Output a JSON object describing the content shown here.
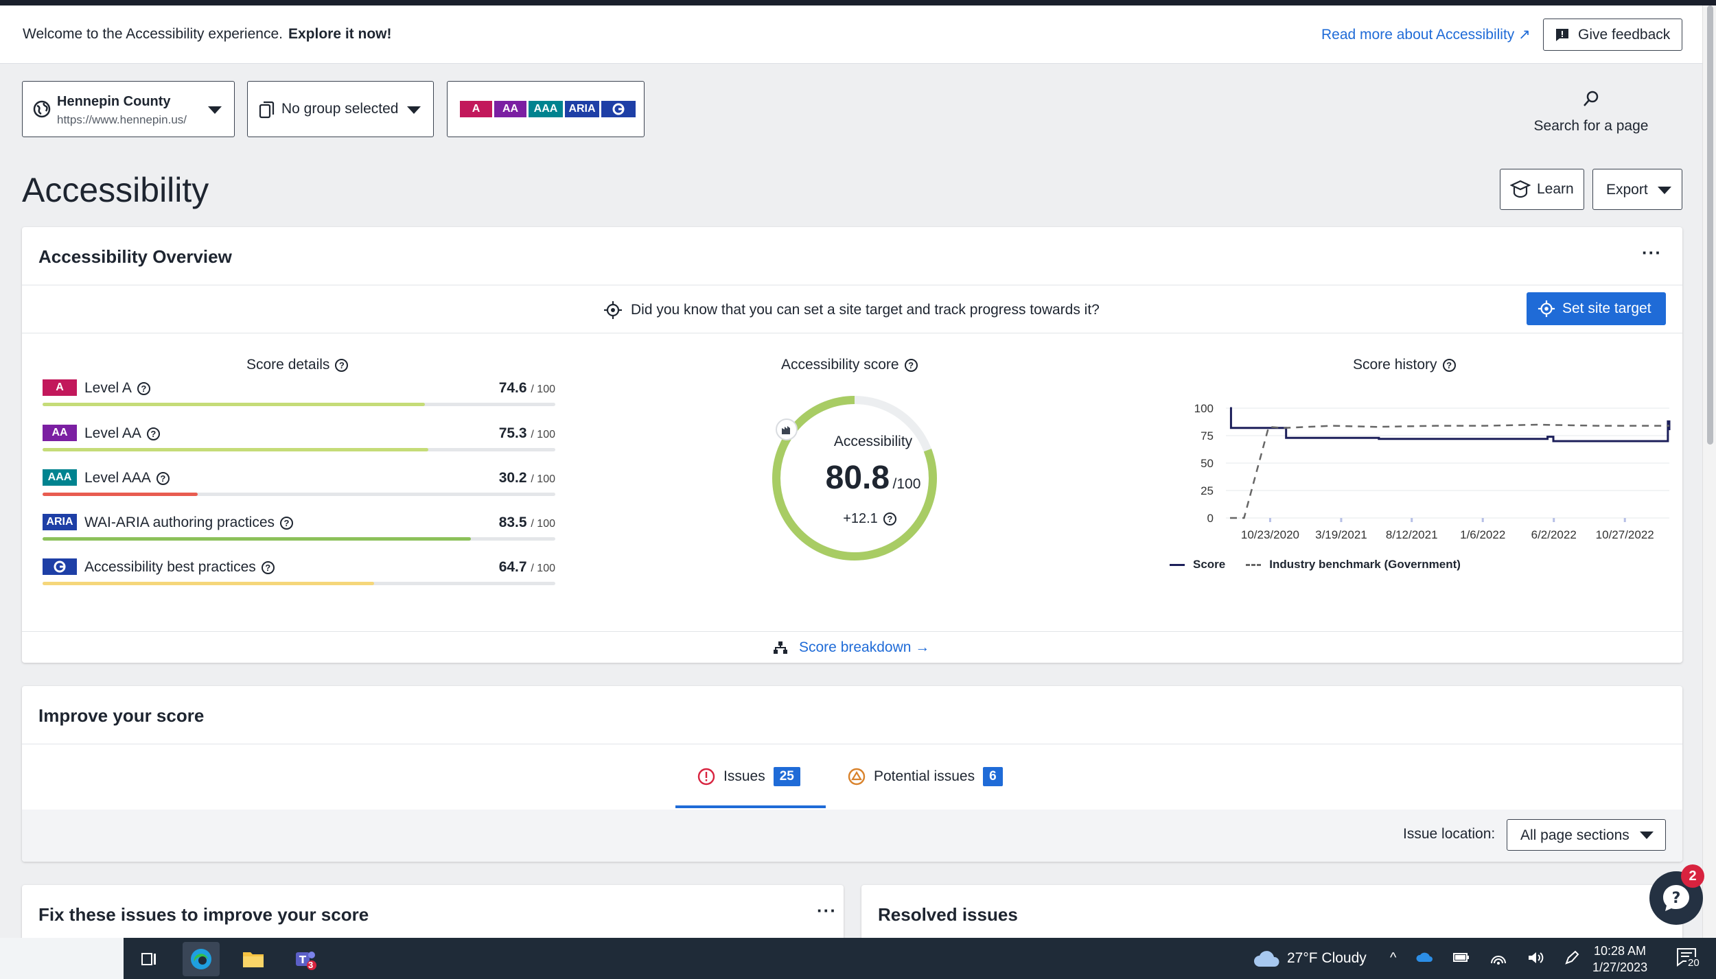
{
  "banner": {
    "welcome": "Welcome to the Accessibility experience.",
    "explore": "Explore it now!",
    "read_more": "Read more about Accessibility ↗",
    "feedback": "Give feedback"
  },
  "site_selector": {
    "name": "Hennepin County",
    "url": "https://www.hennepin.us/"
  },
  "group_selector": {
    "label": "No group selected"
  },
  "level_chips": [
    {
      "label": "A",
      "color": "#c2185b"
    },
    {
      "label": "AA",
      "color": "#7b1fa2"
    },
    {
      "label": "AAA",
      "color": "#00838f"
    },
    {
      "label": "ARIA",
      "color": "#1e3fa6"
    },
    {
      "label": "G",
      "color": "#1e3fa6"
    }
  ],
  "search": {
    "label": "Search for a page"
  },
  "page": {
    "title": "Accessibility",
    "learn": "Learn",
    "export": "Export"
  },
  "overview": {
    "title": "Accessibility Overview",
    "target_prompt": "Did you know that you can set a site target and track progress towards it?",
    "set_target": "Set site target",
    "score_details_title": "Score details",
    "score_details": [
      {
        "badge": "A",
        "badge_color": "#c2185b",
        "name": "Level A",
        "value": "74.6",
        "of": "/ 100",
        "fraction": 0.746,
        "bar_color": "#c5dc78"
      },
      {
        "badge": "AA",
        "badge_color": "#7b1fa2",
        "name": "Level AA",
        "value": "75.3",
        "of": "/ 100",
        "fraction": 0.753,
        "bar_color": "#c5dc78"
      },
      {
        "badge": "AAA",
        "badge_color": "#00838f",
        "name": "Level AAA",
        "value": "30.2",
        "of": "/ 100",
        "fraction": 0.302,
        "bar_color": "#e85c50"
      },
      {
        "badge": "ARIA",
        "badge_color": "#1e3fa6",
        "name": "WAI-ARIA authoring practices",
        "value": "83.5",
        "of": "/ 100",
        "fraction": 0.835,
        "bar_color": "#8cc15a"
      },
      {
        "badge": "G",
        "badge_color": "#1e3fa6",
        "name": "Accessibility best practices",
        "value": "64.7",
        "of": "/ 100",
        "fraction": 0.647,
        "bar_color": "#f5d67a"
      }
    ],
    "score_title": "Accessibility score",
    "score_label": "Accessibility",
    "score_value": "80.8",
    "score_of": "/100",
    "score_fraction": 0.808,
    "score_delta": "+12.1",
    "gauge_color": "#a8cc64",
    "history_title": "Score history",
    "breakdown": "Score breakdown →"
  },
  "chart_data": {
    "type": "line",
    "y_ticks": [
      "100",
      "75",
      "50",
      "25",
      "0"
    ],
    "x_ticks": [
      "10/23/2020",
      "3/19/2021",
      "8/12/2021",
      "1/6/2022",
      "6/2/2022",
      "10/27/2022"
    ],
    "ylim": [
      0,
      100
    ],
    "series": [
      {
        "name": "Score",
        "color": "#1c1f5a",
        "x": [
          "2020-08-01",
          "2020-08-03",
          "2020-11-20",
          "2020-11-25",
          "2021-06-01",
          "2021-06-05",
          "2022-05-10",
          "2022-05-20",
          "2022-06-01",
          "2022-12-20",
          "2023-01-20",
          "2023-01-24",
          "2023-01-27"
        ],
        "values": [
          100,
          82,
          82,
          73,
          73,
          72,
          72,
          74,
          70,
          70,
          70,
          88,
          80
        ]
      },
      {
        "name": "Industry benchmark (Government)",
        "color": "#666666",
        "x": [
          "2020-08-01",
          "2020-08-30",
          "2020-10-20",
          "2020-11-20",
          "2021-03-01",
          "2021-06-01",
          "2021-10-01",
          "2022-01-10",
          "2022-05-01",
          "2022-09-01",
          "2023-01-27"
        ],
        "values": [
          0,
          0,
          83,
          82,
          84,
          83,
          84,
          84,
          85,
          84,
          84
        ]
      }
    ]
  },
  "improve": {
    "title": "Improve your score",
    "tabs": [
      {
        "label": "Issues",
        "count": "25"
      },
      {
        "label": "Potential issues",
        "count": "6"
      }
    ],
    "issue_location_label": "Issue location:",
    "issue_location_value": "All page sections"
  },
  "fix_card": {
    "title": "Fix these issues to improve your score"
  },
  "resolved_card": {
    "title": "Resolved issues"
  },
  "help_bubble": {
    "count": "2"
  },
  "taskbar": {
    "weather": "27°F  Cloudy",
    "time": "10:28 AM",
    "date": "1/27/2023",
    "teams_badge": "3",
    "notifications": "20"
  }
}
